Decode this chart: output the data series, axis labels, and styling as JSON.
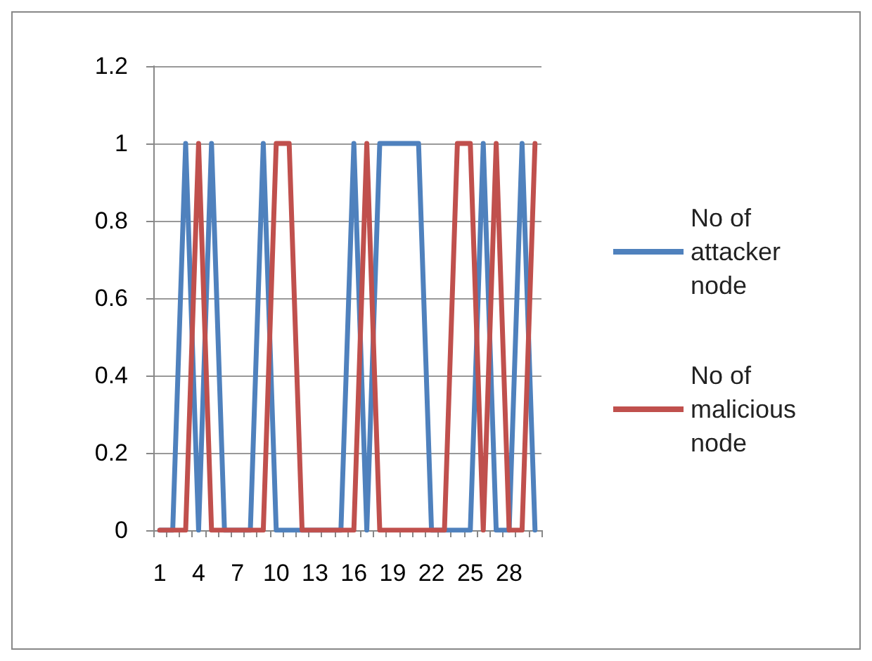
{
  "chart_data": {
    "type": "line",
    "categories": [
      "1",
      null,
      null,
      "4",
      null,
      null,
      "7",
      null,
      null,
      "10",
      null,
      null,
      "13",
      null,
      null,
      "16",
      null,
      null,
      "19",
      null,
      null,
      "22",
      null,
      null,
      "25",
      null,
      null,
      "28",
      null,
      null
    ],
    "series": [
      {
        "name": "No of attacker node",
        "color": "#4f81bd",
        "values": [
          0,
          0,
          1,
          0,
          1,
          0,
          0,
          0,
          1,
          0,
          0,
          0,
          0,
          0,
          0,
          1,
          0,
          1,
          1,
          1,
          1,
          0,
          0,
          0,
          0,
          1,
          0,
          0,
          1,
          0
        ]
      },
      {
        "name": "No of malicious node",
        "color": "#c0504d",
        "values": [
          0,
          0,
          0,
          1,
          0,
          0,
          0,
          0,
          0,
          1,
          1,
          0,
          0,
          0,
          0,
          0,
          1,
          0,
          0,
          0,
          0,
          0,
          0,
          1,
          1,
          0,
          1,
          0,
          0,
          1
        ]
      }
    ],
    "ylim": [
      0,
      1.2
    ],
    "yticks": [
      0,
      0.2,
      0.4,
      0.6,
      0.8,
      1,
      1.2
    ],
    "grid": "y",
    "legend": "right",
    "marker": "none",
    "line_style": "solid"
  }
}
